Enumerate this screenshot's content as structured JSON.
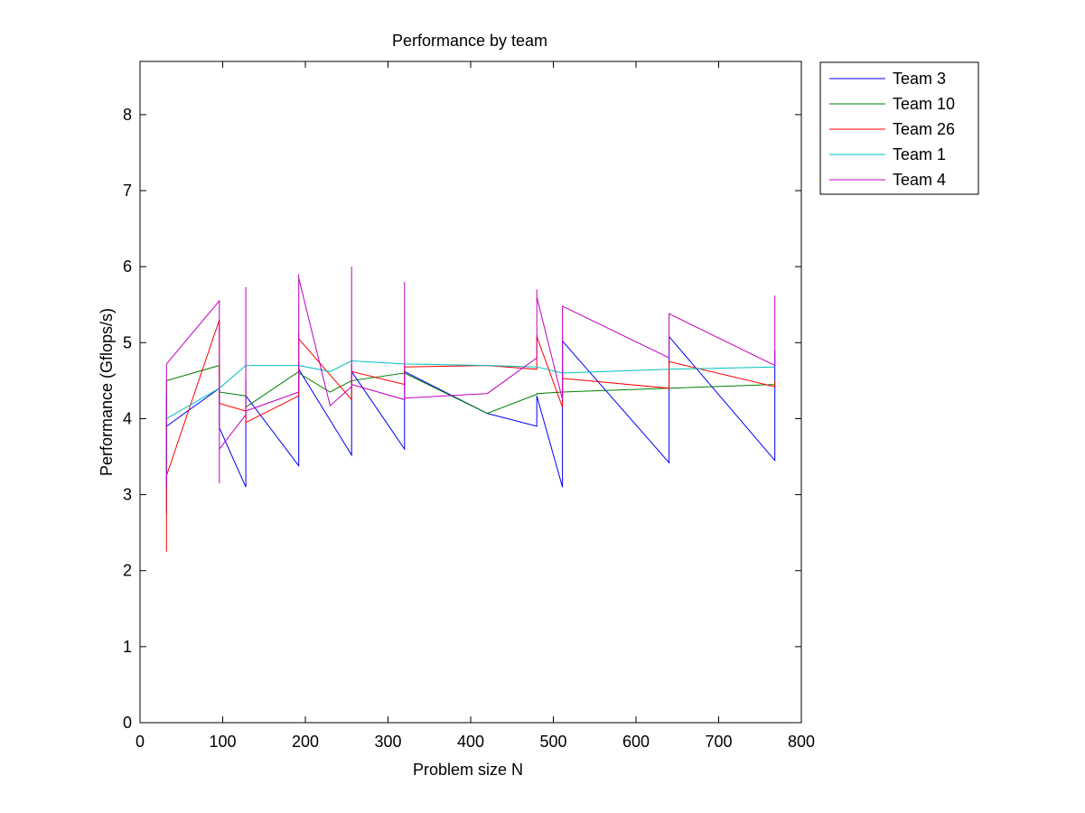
{
  "chart_data": {
    "type": "line",
    "title": "Performance by team",
    "xlabel": "Problem size N",
    "ylabel": "Performance (Gflops/s)",
    "xlim": [
      0,
      800
    ],
    "ylim": [
      0,
      8.7
    ],
    "xticks": [
      0,
      100,
      200,
      300,
      400,
      500,
      600,
      700,
      800
    ],
    "yticks": [
      0,
      1,
      2,
      3,
      4,
      5,
      6,
      7,
      8
    ],
    "grid": false,
    "legend_position": "outside-top-right",
    "series": [
      {
        "name": "Team 3",
        "color": "#0000ff",
        "x": [
          32,
          32,
          32,
          32,
          96,
          96,
          96,
          128,
          128,
          128,
          192,
          192,
          192,
          230,
          256,
          256,
          256,
          320,
          320,
          320,
          420,
          480,
          480,
          480,
          511,
          511,
          511,
          640,
          640,
          640,
          768,
          768,
          768
        ],
        "y": [
          2.75,
          4.3,
          3.9,
          3.9,
          4.4,
          4.3,
          3.88,
          3.1,
          4.52,
          4.3,
          3.38,
          4.75,
          4.65,
          3.98,
          3.52,
          4.72,
          4.62,
          3.6,
          4.65,
          4.62,
          4.07,
          3.9,
          4.3,
          4.3,
          3.1,
          4.9,
          5.02,
          3.42,
          5.08,
          5.08,
          3.45,
          4.9,
          4.12
        ]
      },
      {
        "name": "Team 10",
        "color": "#008000",
        "x": [
          32,
          32,
          32,
          96,
          96,
          96,
          128,
          128,
          128,
          192,
          192,
          192,
          230,
          256,
          256,
          256,
          320,
          320,
          320,
          420,
          480,
          480,
          511,
          511,
          640,
          640,
          768,
          768
        ],
        "y": [
          3.3,
          4.1,
          4.5,
          4.7,
          4.4,
          4.35,
          4.3,
          4.2,
          4.15,
          4.62,
          4.6,
          4.6,
          4.35,
          4.5,
          4.45,
          4.5,
          4.6,
          4.65,
          4.6,
          4.07,
          4.32,
          4.33,
          4.35,
          4.35,
          4.4,
          4.4,
          4.45,
          4.45
        ]
      },
      {
        "name": "Team 26",
        "color": "#ff0000",
        "x": [
          32,
          32,
          32,
          96,
          96,
          96,
          128,
          128,
          128,
          192,
          192,
          192,
          256,
          256,
          256,
          320,
          320,
          320,
          420,
          480,
          480,
          480,
          511,
          511,
          511,
          640,
          640,
          640,
          768,
          768,
          768
        ],
        "y": [
          2.25,
          3.0,
          3.25,
          5.3,
          4.9,
          4.2,
          4.1,
          3.92,
          3.95,
          4.3,
          5.12,
          5.05,
          4.25,
          4.6,
          4.62,
          4.45,
          4.7,
          4.68,
          4.7,
          4.65,
          5.1,
          5.08,
          4.15,
          4.6,
          4.53,
          4.4,
          4.45,
          4.75,
          4.42,
          4.5,
          4.42
        ]
      },
      {
        "name": "Team 1",
        "color": "#00bfbf",
        "x": [
          32,
          32,
          96,
          96,
          128,
          128,
          192,
          192,
          230,
          256,
          256,
          320,
          320,
          420,
          480,
          480,
          511,
          511,
          640,
          640,
          768,
          768
        ],
        "y": [
          4.0,
          4.0,
          4.4,
          4.4,
          4.7,
          4.7,
          4.7,
          4.7,
          4.62,
          4.76,
          4.76,
          4.72,
          4.72,
          4.7,
          4.68,
          4.68,
          4.6,
          4.6,
          4.65,
          4.65,
          4.68,
          4.68
        ]
      },
      {
        "name": "Team 4",
        "color": "#bf00bf",
        "x": [
          32,
          32,
          32,
          96,
          96,
          96,
          128,
          128,
          128,
          192,
          192,
          192,
          230,
          256,
          256,
          256,
          320,
          320,
          320,
          420,
          480,
          480,
          480,
          511,
          511,
          511,
          640,
          640,
          640,
          768,
          768,
          768
        ],
        "y": [
          3.1,
          4.72,
          4.72,
          5.55,
          3.15,
          3.6,
          4.05,
          5.73,
          4.1,
          4.35,
          5.9,
          5.85,
          4.17,
          4.42,
          6.0,
          4.45,
          4.25,
          5.8,
          4.27,
          4.33,
          4.8,
          5.7,
          5.6,
          4.25,
          5.48,
          5.48,
          4.8,
          5.38,
          5.38,
          4.7,
          5.62,
          4.7
        ]
      }
    ]
  }
}
